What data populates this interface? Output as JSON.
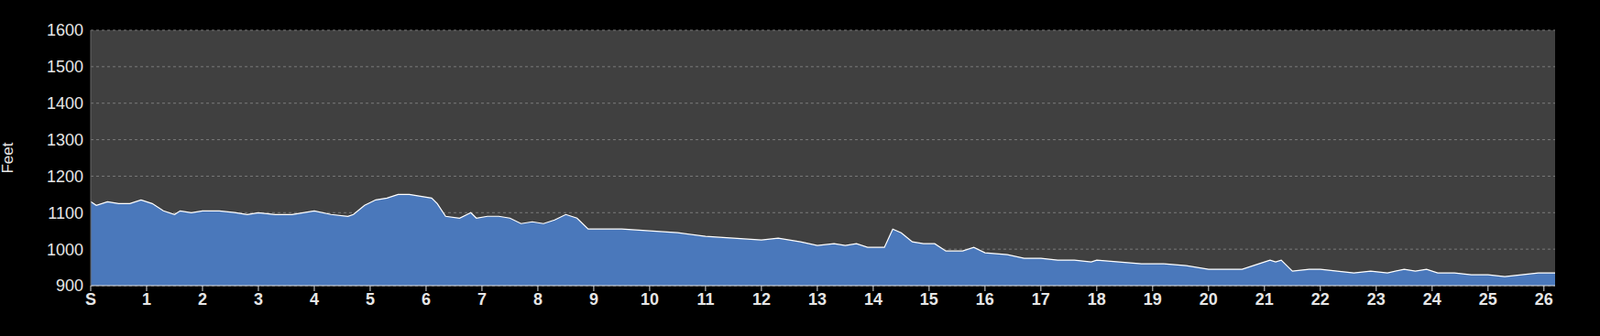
{
  "chart_data": {
    "type": "area",
    "ylabel": "Feet",
    "color": "#4a78bb",
    "grid": true,
    "xlim": [
      0,
      26.2
    ],
    "ylim": [
      900,
      1600
    ],
    "yticks": [
      900,
      1000,
      1100,
      1200,
      1300,
      1400,
      1500,
      1600
    ],
    "xticks": [
      {
        "value": 0,
        "label": "S"
      },
      1,
      2,
      3,
      4,
      5,
      6,
      7,
      8,
      9,
      10,
      11,
      12,
      13,
      14,
      15,
      16,
      17,
      18,
      19,
      20,
      21,
      22,
      23,
      24,
      25,
      26
    ],
    "x": [
      0,
      0.1,
      0.3,
      0.5,
      0.7,
      0.9,
      1.1,
      1.3,
      1.5,
      1.6,
      1.8,
      2.0,
      2.3,
      2.6,
      2.8,
      3.0,
      3.3,
      3.6,
      3.8,
      4.0,
      4.3,
      4.6,
      4.7,
      4.9,
      5.1,
      5.3,
      5.5,
      5.7,
      5.9,
      6.1,
      6.2,
      6.35,
      6.6,
      6.8,
      6.9,
      7.1,
      7.3,
      7.5,
      7.7,
      7.9,
      8.1,
      8.3,
      8.5,
      8.7,
      8.9,
      9.2,
      9.5,
      10,
      10.5,
      11,
      11.5,
      12,
      12.3,
      12.7,
      13,
      13.3,
      13.5,
      13.7,
      13.9,
      14.2,
      14.35,
      14.5,
      14.7,
      14.9,
      15.1,
      15.3,
      15.6,
      15.8,
      16,
      16.4,
      16.7,
      17,
      17.3,
      17.6,
      17.9,
      18,
      18.4,
      18.8,
      19.2,
      19.6,
      20,
      20.3,
      20.6,
      20.9,
      21.1,
      21.2,
      21.3,
      21.5,
      21.8,
      22,
      22.3,
      22.6,
      22.9,
      23.2,
      23.5,
      23.7,
      23.9,
      24.1,
      24.4,
      24.7,
      25,
      25.3,
      25.6,
      25.9,
      26.2
    ],
    "values": [
      1130,
      1120,
      1130,
      1125,
      1125,
      1135,
      1125,
      1105,
      1095,
      1105,
      1100,
      1105,
      1105,
      1100,
      1095,
      1100,
      1095,
      1095,
      1100,
      1105,
      1095,
      1090,
      1095,
      1120,
      1135,
      1140,
      1150,
      1150,
      1145,
      1140,
      1125,
      1090,
      1085,
      1100,
      1085,
      1090,
      1090,
      1085,
      1070,
      1075,
      1070,
      1080,
      1095,
      1085,
      1055,
      1055,
      1055,
      1050,
      1045,
      1035,
      1030,
      1025,
      1030,
      1020,
      1010,
      1015,
      1010,
      1015,
      1005,
      1005,
      1055,
      1045,
      1020,
      1015,
      1015,
      995,
      995,
      1005,
      990,
      985,
      975,
      975,
      970,
      970,
      965,
      970,
      965,
      960,
      960,
      955,
      945,
      945,
      945,
      960,
      970,
      965,
      970,
      940,
      945,
      945,
      940,
      935,
      940,
      935,
      945,
      940,
      945,
      935,
      935,
      930,
      930,
      925,
      930,
      935,
      935
    ]
  }
}
